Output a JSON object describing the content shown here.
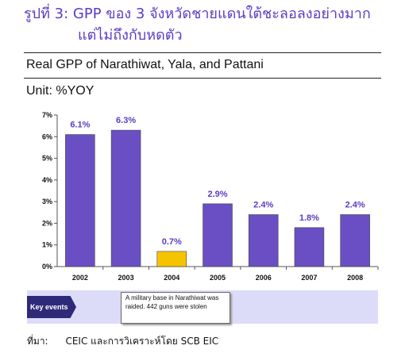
{
  "figure": {
    "title_line1": "รูปที่ 3: GPP ของ 3 จังหวัดชายแดนใต้ชะลอลงอย่างมาก",
    "title_line2": "แต่ไม่ถึงกับหดตัว"
  },
  "chart_title": "Real GPP of Narathiwat, Yala, and Pattani",
  "unit": "Unit: %YOY",
  "chart_data": {
    "type": "bar",
    "title": "Real GPP of Narathiwat, Yala, and Pattani",
    "ylabel": "Unit: %YOY",
    "categories": [
      "2002",
      "2003",
      "2004",
      "2005",
      "2006",
      "2007",
      "2008"
    ],
    "values": [
      6.1,
      6.3,
      0.7,
      2.9,
      2.4,
      1.8,
      2.4
    ],
    "data_labels": [
      "6.1%",
      "6.3%",
      "0.7%",
      "2.9%",
      "2.4%",
      "1.8%",
      "2.4%"
    ],
    "ylim": [
      0,
      7
    ],
    "yticks": [
      "0%",
      "1%",
      "2%",
      "3%",
      "4%",
      "5%",
      "6%",
      "7%"
    ],
    "highlight_category": "2004",
    "colors": {
      "bar": "#6a4fc4",
      "highlight_bar": "#f5c400",
      "label": "#5b3cc4",
      "bar_edge": "#444444"
    },
    "grid": false
  },
  "key_events": {
    "label": "Key events",
    "event_2004": "A military base in Narathiwat was raided. 442 guns were stolen"
  },
  "source": {
    "label": "ที่มา:",
    "text": "CEIC และการวิเคราะห์โดย SCB EIC"
  }
}
